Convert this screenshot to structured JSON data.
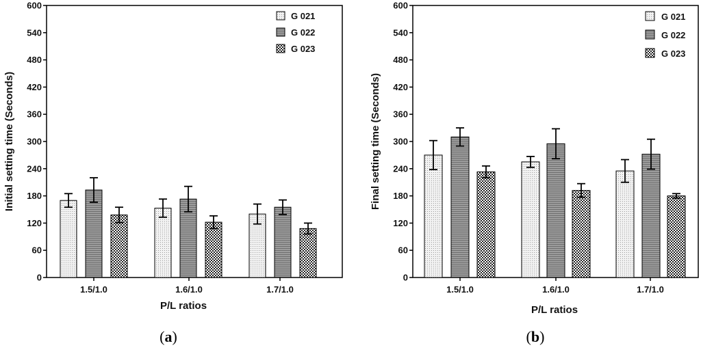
{
  "chart_data": [
    {
      "type": "bar",
      "panel_label": "a",
      "title": "",
      "xlabel": "P/L ratios",
      "ylabel": "Initial setting time (Seconds)",
      "categories": [
        "1.5/1.0",
        "1.6/1.0",
        "1.7/1.0"
      ],
      "ylim": [
        0,
        600
      ],
      "yticks": [
        0,
        60,
        120,
        180,
        240,
        300,
        360,
        420,
        480,
        540,
        600
      ],
      "legend_position": "top-right",
      "grid": false,
      "series": [
        {
          "name": "G 021",
          "values": [
            170,
            153,
            140
          ],
          "errors": [
            15,
            20,
            22
          ]
        },
        {
          "name": "G 022",
          "values": [
            193,
            173,
            155
          ],
          "errors": [
            27,
            28,
            16
          ]
        },
        {
          "name": "G 023",
          "values": [
            138,
            122,
            108
          ],
          "errors": [
            17,
            14,
            12
          ]
        }
      ]
    },
    {
      "type": "bar",
      "panel_label": "b",
      "title": "",
      "xlabel": "P/L ratios",
      "ylabel": "Final setting time (Seconds)",
      "categories": [
        "1.5/1.0",
        "1.6/1.0",
        "1.7/1.0"
      ],
      "ylim": [
        0,
        600
      ],
      "yticks": [
        0,
        60,
        120,
        180,
        240,
        300,
        360,
        420,
        480,
        540,
        600
      ],
      "legend_position": "top-right",
      "grid": false,
      "series": [
        {
          "name": "G 021",
          "values": [
            270,
            255,
            235
          ],
          "errors": [
            32,
            12,
            25
          ]
        },
        {
          "name": "G 022",
          "values": [
            310,
            295,
            272
          ],
          "errors": [
            20,
            33,
            33
          ]
        },
        {
          "name": "G 023",
          "values": [
            233,
            192,
            180
          ],
          "errors": [
            13,
            15,
            5
          ]
        }
      ]
    }
  ],
  "captions": {
    "a": "(a)",
    "b": "(b)"
  },
  "colors": {
    "G 021": "#e6e6e6",
    "G 022": "#8a8a8a",
    "G 023": "#4a4a4a",
    "axis": "#000000"
  }
}
